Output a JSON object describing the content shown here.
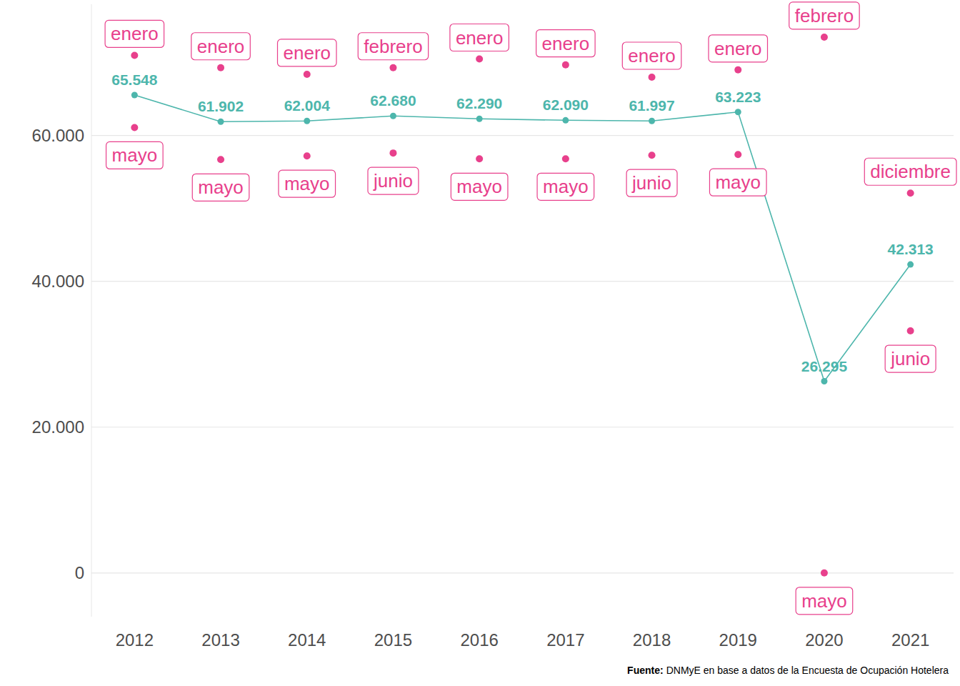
{
  "chart_data": {
    "type": "line",
    "categories": [
      "2012",
      "2013",
      "2014",
      "2015",
      "2016",
      "2017",
      "2018",
      "2019",
      "2020",
      "2021"
    ],
    "ylim": [
      -6000,
      78000
    ],
    "yticks": [
      {
        "value": 0,
        "label": "0"
      },
      {
        "value": 20000,
        "label": "20.000"
      },
      {
        "value": 40000,
        "label": "40.000"
      },
      {
        "value": 60000,
        "label": "60.000"
      }
    ],
    "grid": true,
    "series": [
      {
        "type": "line",
        "color": "#4db6ac",
        "marker": "circle",
        "data_labels": true,
        "values": [
          65548,
          61902,
          62004,
          62680,
          62290,
          62090,
          61997,
          63223,
          26295,
          42313
        ],
        "value_labels": [
          "65.548",
          "61.902",
          "62.004",
          "62.680",
          "62.290",
          "62.090",
          "61.997",
          "63.223",
          "26.295",
          "42.313"
        ]
      },
      {
        "type": "scatter",
        "color": "#e8408c",
        "marker": "circle",
        "values": [
          71000,
          69300,
          68400,
          69300,
          70500,
          69700,
          68000,
          69000,
          73500,
          52100
        ],
        "point_labels": [
          "enero",
          "enero",
          "enero",
          "febrero",
          "enero",
          "enero",
          "enero",
          "enero",
          "febrero",
          "diciembre"
        ]
      },
      {
        "type": "scatter",
        "color": "#e8408c",
        "marker": "circle",
        "values": [
          61100,
          56700,
          57200,
          57600,
          56800,
          56800,
          57300,
          57400,
          0,
          33200
        ],
        "point_labels": [
          "mayo",
          "mayo",
          "mayo",
          "junio",
          "mayo",
          "mayo",
          "junio",
          "mayo",
          "mayo",
          "junio"
        ]
      }
    ],
    "source": {
      "label": "Fuente:",
      "text": "DNMyE en base a datos de la Encuesta de Ocupación Hotelera"
    }
  }
}
